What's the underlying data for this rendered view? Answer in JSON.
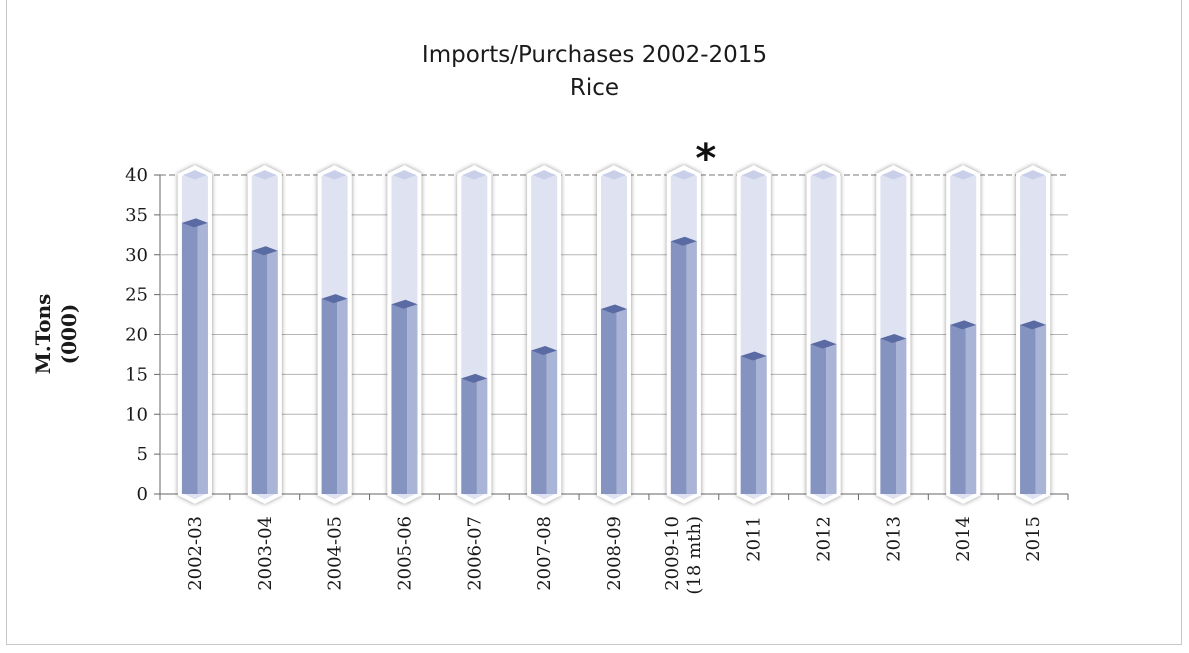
{
  "chart_data": {
    "type": "bar",
    "title": "Imports/Purchases  2002-2015",
    "subtitle": "Rice",
    "ylabel_lines": [
      "M.Tons",
      "(000)"
    ],
    "ylim": [
      0,
      40
    ],
    "yticks": [
      "0",
      "5",
      "10",
      "15",
      "20",
      "25",
      "30",
      "35",
      "40"
    ],
    "categories": [
      [
        "2002-03"
      ],
      [
        "2003-04"
      ],
      [
        "2004-05"
      ],
      [
        "2005-06"
      ],
      [
        "2006-07"
      ],
      [
        "2007-08"
      ],
      [
        "2008-09"
      ],
      [
        "2009-10",
        "(18 mth)"
      ],
      [
        "2011"
      ],
      [
        "2012"
      ],
      [
        "2013"
      ],
      [
        "2014"
      ],
      [
        "2015"
      ]
    ],
    "values": [
      34,
      30.5,
      24.5,
      23.8,
      14.5,
      18,
      23.2,
      31.7,
      17.3,
      18.8,
      19.5,
      21.2,
      21.2
    ],
    "annotation": "*",
    "grid": true,
    "colors": {
      "fill": "#8593c0",
      "fill_light": "#aab4d6",
      "track": "#dfe2f1",
      "cap": "#5a6aa2"
    }
  }
}
